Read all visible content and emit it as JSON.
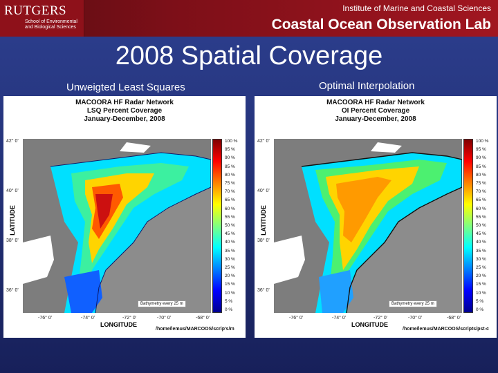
{
  "header": {
    "logo_name": "RUTGERS",
    "logo_sub_1": "School of Environmental",
    "logo_sub_2": "and Biological Sciences",
    "institute": "Institute of Marine and Coastal Sciences",
    "lab": "Coastal Ocean Observation Lab"
  },
  "slide": {
    "title": "2008 Spatial Coverage",
    "left_caption": "Unweigted Least Squares",
    "right_caption": "Optimal Interpolation"
  },
  "colors": {
    "land": "#8c8c8c",
    "header": "#8e111a",
    "background": "#25347c"
  },
  "left_map": {
    "title_1": "MACOORA HF Radar Network",
    "title_2": "LSQ Percent Coverage",
    "title_3": "January-December, 2008",
    "lat_ticks": [
      "42° 0'",
      "40° 0'",
      "38° 0'",
      "36° 0'"
    ],
    "lat_label": "LATITUDE",
    "lon_ticks": [
      "-76° 0'",
      "-74° 0'",
      "-72° 0'",
      "-70° 0'",
      "-68° 0'"
    ],
    "lon_label": "LONGITUDE",
    "path": "/home/lemus/MARCOOS/scrip's/m",
    "bathymetry_note": "Bathymetry every 25 m"
  },
  "right_map": {
    "title_1": "MACOORA HF Radar Network",
    "title_2": "OI Percent Coverage",
    "title_3": "January-December, 2008",
    "lat_ticks": [
      "42° 0'",
      "40° 0'",
      "38° 0'",
      "36° 0'"
    ],
    "lat_label": "LATITUDE",
    "lon_ticks": [
      "-76° 0'",
      "-74° 0'",
      "-72° 0'",
      "-70° 0'",
      "-68° 0'"
    ],
    "lon_label": "LONGITUDE",
    "path": "/home/lemus/MARCOOS/scripts/pst-c",
    "bathymetry_note": "Bathymetry every 25 m"
  },
  "colorbar": {
    "labels": [
      "100 %",
      "95 %",
      "90 %",
      "85 %",
      "80 %",
      "75 %",
      "70 %",
      "65 %",
      "60 %",
      "55 %",
      "50 %",
      "45 %",
      "40 %",
      "35 %",
      "30 %",
      "25 %",
      "20 %",
      "15 %",
      "10 %",
      "5 %",
      "0 %"
    ]
  }
}
